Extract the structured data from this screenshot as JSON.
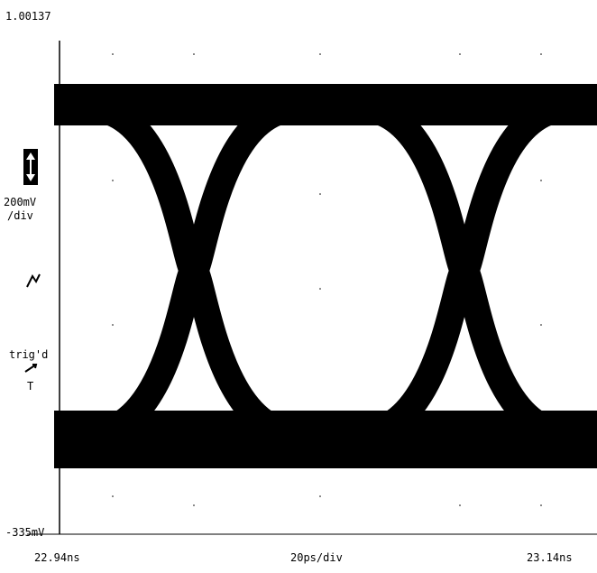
{
  "screen": {
    "top_label": "1.00137",
    "scale_value": "200mV",
    "scale_unit": "/div",
    "trigger_status": "trig'd",
    "trigger_marker": "T",
    "bottom_label": "-335mV",
    "x_start": "22.94ns",
    "x_scale": "20ps/div",
    "x_end": "23.14ns"
  }
}
